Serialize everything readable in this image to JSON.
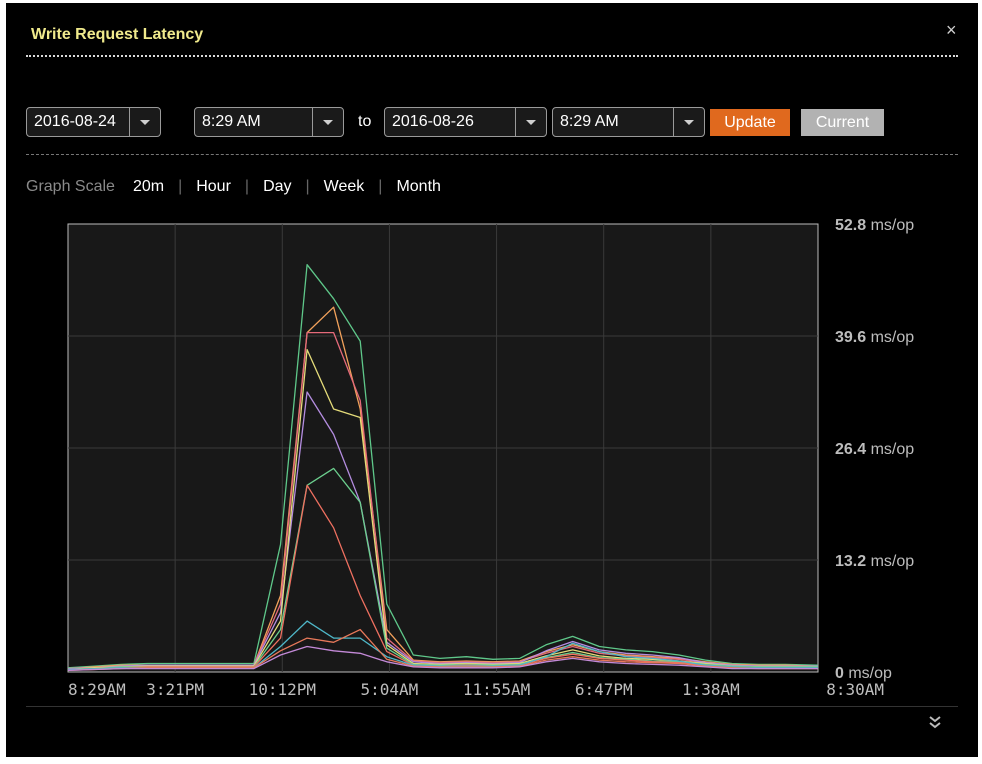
{
  "title": "Write Request Latency",
  "close_glyph": "×",
  "range": {
    "from_date": "2016-08-24",
    "from_time": "8:29 AM",
    "to_label": "to",
    "to_date": "2016-08-26",
    "to_time": "8:29 AM",
    "update_label": "Update",
    "current_label": "Current"
  },
  "graph_scale": {
    "label": "Graph Scale",
    "options": [
      "20m",
      "Hour",
      "Day",
      "Week",
      "Month"
    ]
  },
  "colors": {
    "update": "#e0691e",
    "current": "#b2b2b2",
    "title": "#f0ea8c"
  },
  "chart_data": {
    "type": "line",
    "title": "",
    "xlabel": "",
    "ylabel": "",
    "y_unit": "ms/op",
    "ylim": [
      0,
      52.8
    ],
    "y_ticks": [
      0,
      13.2,
      26.4,
      39.6,
      52.8
    ],
    "x_ticks": [
      "8:29AM",
      "3:21PM",
      "10:12PM",
      "5:04AM",
      "11:55AM",
      "6:47PM",
      "1:38AM",
      "8:30AM"
    ],
    "grid": true,
    "legend": "none",
    "x_hours": [
      0,
      1.7,
      3.4,
      5.1,
      6.8,
      8.5,
      10.2,
      11.9,
      13.6,
      15.3,
      17.0,
      18.7,
      20.4,
      22.1,
      23.8,
      25.5,
      27.2,
      28.9,
      30.6,
      32.3,
      34.0,
      35.7,
      37.4,
      39.1,
      40.8,
      42.5,
      44.2,
      45.9,
      48.0
    ],
    "series": [
      {
        "color": "#5fc88a",
        "values": [
          0.5,
          0.7,
          0.9,
          1.0,
          1.0,
          1.0,
          1.0,
          1.0,
          15,
          48,
          44,
          39,
          8,
          2,
          1.6,
          1.8,
          1.5,
          1.6,
          3.2,
          4.2,
          3.0,
          2.6,
          2.4,
          2.0,
          1.4,
          1.0,
          0.9,
          0.9,
          0.8
        ]
      },
      {
        "color": "#f2a15b",
        "values": [
          0.4,
          0.6,
          0.8,
          0.8,
          0.8,
          0.8,
          0.8,
          0.8,
          9,
          40,
          43,
          31,
          5,
          1.4,
          1.2,
          1.3,
          1.2,
          1.3,
          2.4,
          3.2,
          2.4,
          2.0,
          1.8,
          1.6,
          1.2,
          0.9,
          0.8,
          0.8,
          0.7
        ]
      },
      {
        "color": "#e56a7a",
        "values": [
          0.4,
          0.5,
          0.7,
          0.8,
          0.8,
          0.8,
          0.8,
          0.8,
          8,
          40,
          40,
          32,
          4,
          1.3,
          1.1,
          1.2,
          1.1,
          1.2,
          2.2,
          3.0,
          2.2,
          1.9,
          1.7,
          1.5,
          1.1,
          0.8,
          0.7,
          0.7,
          0.7
        ]
      },
      {
        "color": "#b48de0",
        "values": [
          0.4,
          0.5,
          0.7,
          0.8,
          0.8,
          0.8,
          0.8,
          0.8,
          7,
          33,
          28,
          20,
          3.5,
          1.2,
          1.0,
          1.1,
          1.0,
          1.1,
          2.5,
          3.6,
          2.6,
          2.2,
          2.0,
          1.7,
          1.1,
          0.8,
          0.7,
          0.7,
          0.7
        ]
      },
      {
        "color": "#e5dc7a",
        "values": [
          0.3,
          0.5,
          0.6,
          0.7,
          0.7,
          0.7,
          0.7,
          0.7,
          6,
          38,
          31,
          30,
          3.2,
          1.0,
          0.9,
          1.0,
          0.9,
          1.0,
          1.9,
          2.6,
          1.9,
          1.6,
          1.5,
          1.3,
          1.0,
          0.7,
          0.6,
          0.6,
          0.6
        ]
      },
      {
        "color": "#6ccf8e",
        "values": [
          0.3,
          0.4,
          0.6,
          0.6,
          0.6,
          0.6,
          0.6,
          0.6,
          5,
          22,
          24,
          20,
          2.8,
          0.9,
          0.8,
          0.9,
          0.8,
          0.9,
          1.7,
          2.3,
          1.7,
          1.5,
          1.3,
          1.2,
          0.9,
          0.7,
          0.6,
          0.6,
          0.6
        ]
      },
      {
        "color": "#ef7060",
        "values": [
          0.3,
          0.4,
          0.5,
          0.6,
          0.6,
          0.6,
          0.6,
          0.6,
          4,
          22,
          17,
          9,
          2.4,
          0.8,
          0.7,
          0.8,
          0.7,
          0.8,
          1.6,
          2.1,
          1.6,
          1.4,
          1.2,
          1.1,
          0.8,
          0.6,
          0.5,
          0.5,
          0.5
        ]
      },
      {
        "color": "#4fb7c8",
        "values": [
          0.3,
          0.4,
          0.5,
          0.5,
          0.5,
          0.5,
          0.5,
          0.5,
          3,
          6,
          4,
          4,
          1.8,
          0.8,
          0.7,
          0.7,
          0.7,
          0.8,
          1.8,
          3.4,
          2.4,
          1.8,
          1.6,
          1.3,
          0.8,
          0.6,
          0.5,
          0.5,
          0.5
        ]
      },
      {
        "color": "#e8795a",
        "values": [
          0.2,
          0.3,
          0.4,
          0.5,
          0.5,
          0.5,
          0.5,
          0.5,
          2.5,
          4,
          3.5,
          5,
          1.5,
          0.7,
          0.6,
          0.6,
          0.6,
          0.7,
          1.4,
          1.8,
          1.4,
          1.2,
          1.1,
          1.0,
          0.7,
          0.5,
          0.4,
          0.4,
          0.4
        ]
      },
      {
        "color": "#c48ad8",
        "values": [
          0.2,
          0.3,
          0.4,
          0.4,
          0.4,
          0.4,
          0.4,
          0.4,
          2,
          3,
          2.5,
          2.2,
          1.2,
          0.6,
          0.5,
          0.5,
          0.5,
          0.6,
          1.2,
          1.6,
          1.2,
          1.0,
          0.9,
          0.8,
          0.6,
          0.4,
          0.4,
          0.4,
          0.4
        ]
      }
    ]
  }
}
